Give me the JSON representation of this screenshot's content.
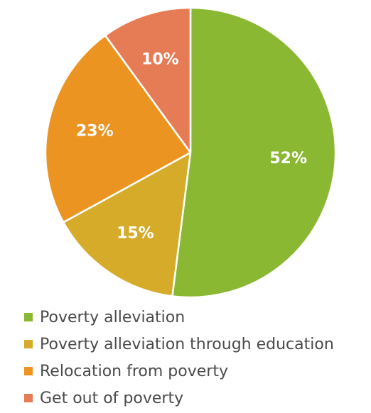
{
  "chart_data": {
    "type": "pie",
    "title": "",
    "slices": [
      {
        "name": "Poverty alleviation",
        "value": 52,
        "label": "52%",
        "color": "#8ab833"
      },
      {
        "name": "Poverty alleviation through education",
        "value": 15,
        "label": "15%",
        "color": "#d6ab2a"
      },
      {
        "name": "Relocation from poverty",
        "value": 23,
        "label": "23%",
        "color": "#ec9422"
      },
      {
        "name": "Get out of poverty",
        "value": 10,
        "label": "10%",
        "color": "#e67c55"
      }
    ],
    "start_angle": "12 o'clock",
    "direction": "clockwise",
    "legend_placement": "bottom"
  }
}
